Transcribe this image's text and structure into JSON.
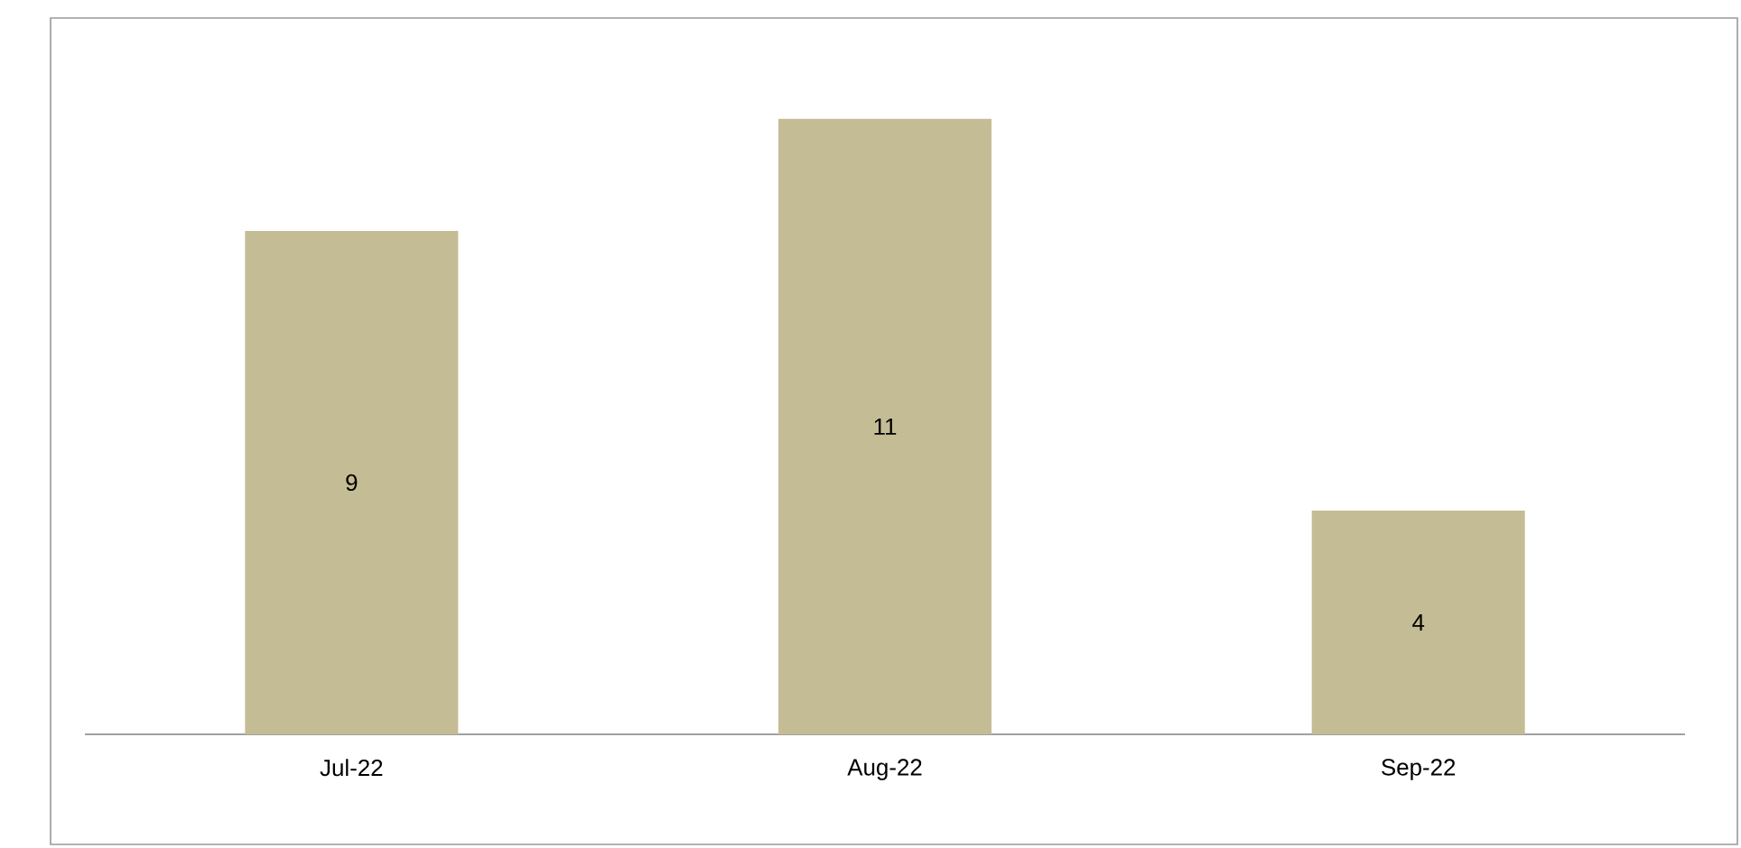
{
  "chart_data": {
    "type": "bar",
    "categories": [
      "Jul-22",
      "Aug-22",
      "Sep-22"
    ],
    "values": [
      9,
      11,
      4
    ],
    "color": "#c4bc94",
    "data_labels": true,
    "tick_labels": "x"
  }
}
